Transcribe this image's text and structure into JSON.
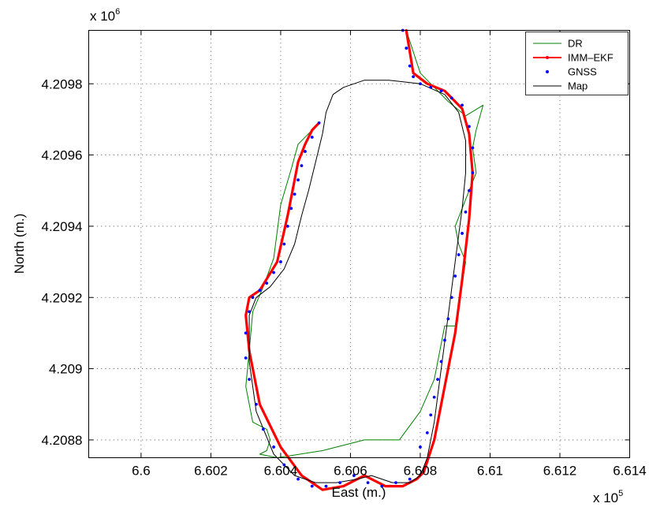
{
  "chart_data": {
    "type": "line",
    "xlabel": "East (m.)",
    "ylabel": "North (m.)",
    "x_multiplier": {
      "base": "x 10",
      "exp": "5"
    },
    "y_multiplier": {
      "base": "x 10",
      "exp": "6"
    },
    "xlim": [
      6.5985,
      6.614
    ],
    "ylim": [
      4.20875,
      4.20995
    ],
    "x_ticks": [
      6.6,
      6.602,
      6.604,
      6.606,
      6.608,
      6.61,
      6.612,
      6.614
    ],
    "x_tick_labels": [
      "6.6",
      "6.602",
      "6.604",
      "6.606",
      "6.608",
      "6.61",
      "6.612",
      "6.614"
    ],
    "y_ticks": [
      4.2088,
      4.209,
      4.2092,
      4.2094,
      4.2096,
      4.2098
    ],
    "y_tick_labels": [
      "4.2088",
      "4.209",
      "4.2092",
      "4.2094",
      "4.2096",
      "4.2098"
    ],
    "grid": true,
    "legend_position": "top-right",
    "series": [
      {
        "name": "DR",
        "color": "#008000",
        "style": "line",
        "x": [
          6.605,
          6.6045,
          6.6043,
          6.604,
          6.6038,
          6.6035,
          6.6032,
          6.6031,
          6.603,
          6.6032,
          6.6036,
          6.6037,
          6.6036,
          6.6034,
          6.6039,
          6.6052,
          6.6064,
          6.6074,
          6.608,
          6.6084,
          6.6087,
          6.609,
          6.6093,
          6.6091,
          6.609,
          6.6092,
          6.6094,
          6.6096,
          6.6095,
          6.6096,
          6.6098,
          6.6093,
          6.6088,
          6.6083,
          6.608,
          6.6079,
          6.6076
        ],
        "y": [
          4.20968,
          4.20963,
          4.20956,
          4.20946,
          4.20931,
          4.20923,
          4.20916,
          4.20905,
          4.20895,
          4.20885,
          4.20883,
          4.2088,
          4.20877,
          4.20876,
          4.20875,
          4.20877,
          4.2088,
          4.2088,
          4.20888,
          4.20897,
          4.20912,
          4.20912,
          4.2093,
          4.20935,
          4.2094,
          4.20945,
          4.2095,
          4.20955,
          4.20962,
          4.20967,
          4.20974,
          4.20971,
          4.20975,
          4.2098,
          4.20983,
          4.20986,
          4.20995
        ]
      },
      {
        "name": "IMM–EKF",
        "color": "#ff0000",
        "style": "thick-line",
        "x": [
          6.6076,
          6.6078,
          6.6082,
          6.6087,
          6.6092,
          6.6094,
          6.6095,
          6.6094,
          6.6092,
          6.609,
          6.6087,
          6.6084,
          6.6081,
          6.6079,
          6.6075,
          6.607,
          6.6064,
          6.6058,
          6.6052,
          6.6046,
          6.604,
          6.6034,
          6.6031,
          6.603,
          6.6031,
          6.6034,
          6.6039,
          6.6042,
          6.6044,
          6.6045,
          6.6047,
          6.6049,
          6.6051
        ],
        "y": [
          4.20995,
          4.20983,
          4.2098,
          4.20978,
          4.20973,
          4.20966,
          4.20955,
          4.20942,
          4.20925,
          4.2091,
          4.20895,
          4.2088,
          4.20871,
          4.20869,
          4.20867,
          4.20867,
          4.2087,
          4.20867,
          4.20866,
          4.2087,
          4.20878,
          4.2089,
          4.20905,
          4.20915,
          4.2092,
          4.20922,
          4.2093,
          4.20943,
          4.20953,
          4.20958,
          4.20963,
          4.20967,
          4.20969
        ]
      },
      {
        "name": "GNSS",
        "color": "#0000ff",
        "style": "dots",
        "x": [
          6.6075,
          6.6076,
          6.6077,
          6.6078,
          6.608,
          6.6083,
          6.6086,
          6.6089,
          6.6092,
          6.6094,
          6.6095,
          6.6095,
          6.6094,
          6.6093,
          6.6092,
          6.6091,
          6.609,
          6.6089,
          6.6088,
          6.6087,
          6.6086,
          6.6085,
          6.6084,
          6.6083,
          6.6082,
          6.608,
          6.6077,
          6.6073,
          6.6069,
          6.6065,
          6.6061,
          6.6057,
          6.6053,
          6.6049,
          6.6045,
          6.6041,
          6.6038,
          6.6035,
          6.6033,
          6.6031,
          6.603,
          6.603,
          6.6031,
          6.6032,
          6.6034,
          6.6036,
          6.6038,
          6.604,
          6.6041,
          6.6042,
          6.6043,
          6.6044,
          6.6045,
          6.6046,
          6.6047,
          6.6049,
          6.6051
        ],
        "y": [
          4.20995,
          4.2099,
          4.20985,
          4.20982,
          4.2098,
          4.20979,
          4.20978,
          4.20976,
          4.20974,
          4.20968,
          4.20962,
          4.20955,
          4.2095,
          4.20944,
          4.20938,
          4.20932,
          4.20926,
          4.2092,
          4.20914,
          4.20908,
          4.20902,
          4.20897,
          4.20892,
          4.20887,
          4.20882,
          4.20878,
          4.20869,
          4.20868,
          4.20867,
          4.20868,
          4.2087,
          4.20868,
          4.20867,
          4.20867,
          4.20869,
          4.20873,
          4.20878,
          4.20883,
          4.2089,
          4.20897,
          4.20903,
          4.2091,
          4.20916,
          4.2092,
          4.20922,
          4.20924,
          4.20927,
          4.2093,
          4.20935,
          4.2094,
          4.20945,
          4.20949,
          4.20953,
          4.20957,
          4.20961,
          4.20965,
          4.20969
        ]
      },
      {
        "name": "Map",
        "color": "#000000",
        "style": "line",
        "x": [
          6.6071,
          6.608,
          6.6087,
          6.6091,
          6.6093,
          6.6093,
          6.6092,
          6.609,
          6.6088,
          6.6086,
          6.6084,
          6.6082,
          6.608,
          6.6077,
          6.6072,
          6.6066,
          6.6062,
          6.6056,
          6.605,
          6.6044,
          6.6038,
          6.6033,
          6.6031,
          6.6031,
          6.6033,
          6.6037,
          6.6041,
          6.6044,
          6.6046,
          6.6048,
          6.605,
          6.6052,
          6.6053,
          6.6055,
          6.6058,
          6.6064,
          6.6071
        ],
        "y": [
          4.20981,
          4.2098,
          4.20977,
          4.20972,
          4.20964,
          4.20955,
          4.20945,
          4.2093,
          4.20915,
          4.209,
          4.20885,
          4.20875,
          4.2087,
          4.20868,
          4.20868,
          4.2087,
          4.20869,
          4.20868,
          4.20868,
          4.2087,
          4.20876,
          4.20888,
          4.20902,
          4.20915,
          4.2092,
          4.20923,
          4.20928,
          4.20935,
          4.20943,
          4.2095,
          4.20958,
          4.20966,
          4.20972,
          4.20977,
          4.20979,
          4.20981,
          4.20981
        ]
      }
    ]
  }
}
